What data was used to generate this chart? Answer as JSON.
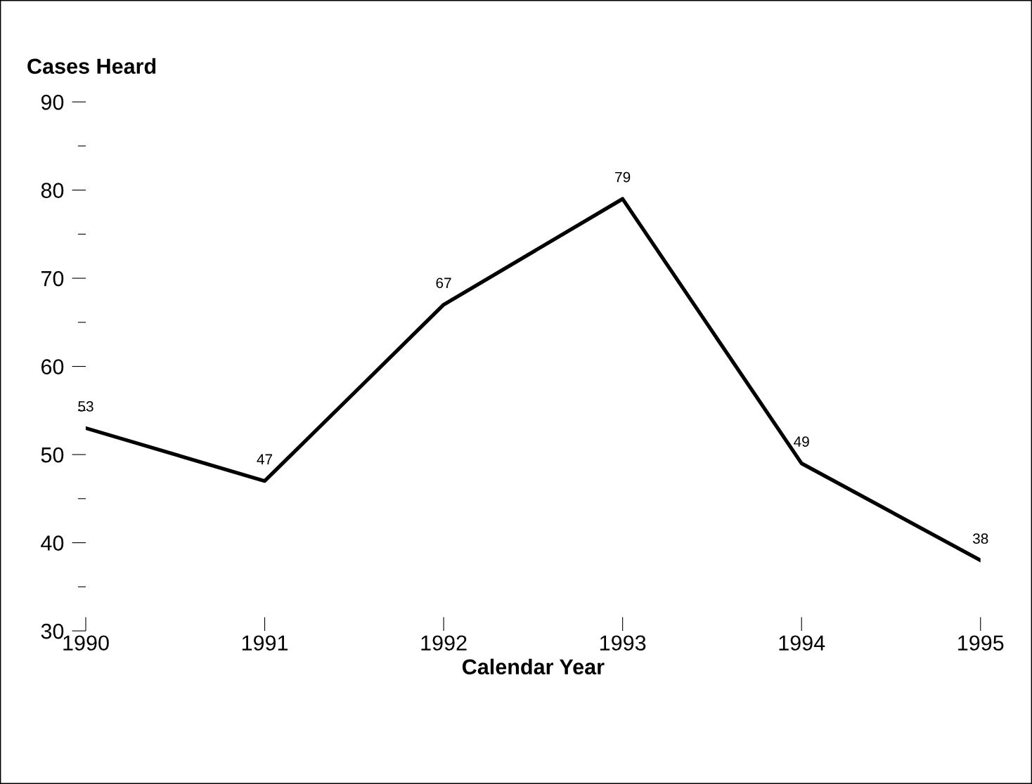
{
  "chart_data": {
    "type": "line",
    "xlabel": "Calendar Year",
    "ylabel": "Cases Heard",
    "x": [
      1990,
      1991,
      1992,
      1993,
      1994,
      1995
    ],
    "series": [
      {
        "color": "#000000",
        "values": [
          53,
          47,
          67,
          79,
          49,
          38
        ]
      }
    ],
    "xlim": [
      1990,
      1995
    ],
    "xticks": [
      1990,
      1991,
      1992,
      1993,
      1994,
      1995
    ],
    "ylim": [
      30,
      90
    ],
    "yticks": [
      30,
      {
        "value": 35,
        "label": null
      },
      40,
      {
        "value": 45,
        "label": null
      },
      50,
      {
        "value": 55,
        "label": null
      },
      60,
      {
        "value": 65,
        "label": null
      },
      70,
      {
        "value": 75,
        "label": null
      },
      80,
      {
        "value": 85,
        "label": null
      },
      90
    ],
    "data_labels": true,
    "grid": false,
    "marker": "none",
    "line_style": "solid"
  }
}
